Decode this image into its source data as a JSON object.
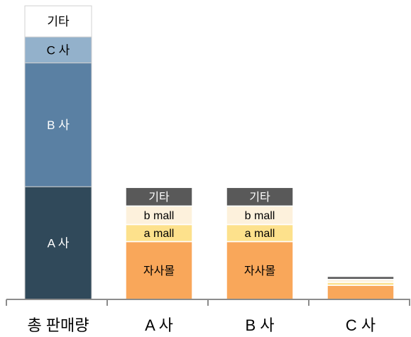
{
  "chart_data": {
    "type": "bar",
    "stacked": true,
    "categories": [
      "총 판매량",
      "A 사",
      "B 사",
      "C 사"
    ],
    "y_range": [
      0,
      400
    ],
    "grid": false,
    "legend": "none",
    "bars": [
      {
        "category": "총 판매량",
        "segments": [
          {
            "label": "A 사",
            "value": 152,
            "color": "#30495a",
            "text_color": "#ffffff"
          },
          {
            "label": "B 사",
            "value": 167,
            "color": "#5a80a3",
            "text_color": "#ffffff"
          },
          {
            "label": "C 사",
            "value": 35,
            "color": "#93b1cb",
            "text_color": "#000000"
          },
          {
            "label": "기타",
            "value": 42,
            "color": "#ffffff",
            "text_color": "#000000"
          }
        ]
      },
      {
        "category": "A 사",
        "segments": [
          {
            "label": "자사몰",
            "value": 78,
            "color": "#f9a75a",
            "text_color": "#000000"
          },
          {
            "label": "a mall",
            "value": 23,
            "color": "#fde18c",
            "text_color": "#000000"
          },
          {
            "label": "b mall",
            "value": 25,
            "color": "#fdf1dc",
            "text_color": "#000000"
          },
          {
            "label": "기타",
            "value": 25,
            "color": "#595959",
            "text_color": "#ffffff"
          }
        ]
      },
      {
        "category": "B 사",
        "segments": [
          {
            "label": "자사몰",
            "value": 78,
            "color": "#f9a75a",
            "text_color": "#000000"
          },
          {
            "label": "a mall",
            "value": 23,
            "color": "#fde18c",
            "text_color": "#000000"
          },
          {
            "label": "b mall",
            "value": 25,
            "color": "#fdf1dc",
            "text_color": "#000000"
          },
          {
            "label": "기타",
            "value": 25,
            "color": "#595959",
            "text_color": "#ffffff"
          }
        ]
      },
      {
        "category": "C 사",
        "segments": [
          {
            "label": "",
            "value": 19,
            "color": "#f9a75a",
            "text_color": "#000000"
          },
          {
            "label": "",
            "value": 4,
            "color": "#fde18c",
            "text_color": "#000000"
          },
          {
            "label": "",
            "value": 4,
            "color": "#fdf1dc",
            "text_color": "#000000"
          },
          {
            "label": "",
            "value": 4,
            "color": "#595959",
            "text_color": "#ffffff"
          }
        ]
      }
    ]
  }
}
